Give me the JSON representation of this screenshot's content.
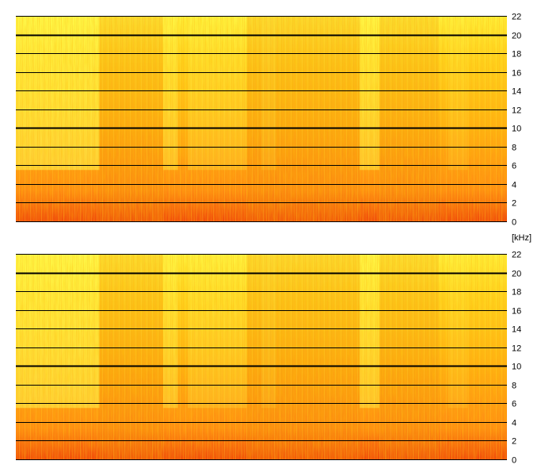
{
  "unit_label": "[kHz]",
  "chart_data": [
    {
      "type": "heatmap",
      "subtype": "spectrogram",
      "channel_index": 1,
      "y_unit": "kHz",
      "ylim": [
        0,
        22
      ],
      "y_ticks": [
        0,
        2,
        4,
        6,
        8,
        10,
        12,
        14,
        16,
        18,
        20,
        22
      ],
      "y_tick_labels": [
        "0",
        "2",
        "4",
        "6",
        "8",
        "10",
        "12",
        "14",
        "16",
        "18",
        "20",
        "22"
      ],
      "emphasized_gridlines": [
        10,
        20
      ],
      "grid": true,
      "colormap": [
        "#ffff33",
        "#ffc20a",
        "#ff9a14",
        "#f2500e"
      ]
    },
    {
      "type": "heatmap",
      "subtype": "spectrogram",
      "channel_index": 2,
      "y_unit": "kHz",
      "ylim": [
        0,
        22
      ],
      "y_ticks": [
        0,
        2,
        4,
        6,
        8,
        10,
        12,
        14,
        16,
        18,
        20,
        22
      ],
      "y_tick_labels": [
        "0",
        "2",
        "4",
        "6",
        "8",
        "10",
        "12",
        "14",
        "16",
        "18",
        "20",
        "22"
      ],
      "emphasized_gridlines": [
        10,
        20
      ],
      "grid": true,
      "colormap": [
        "#ffff33",
        "#ffc20a",
        "#ff9a14",
        "#f2500e"
      ]
    }
  ]
}
